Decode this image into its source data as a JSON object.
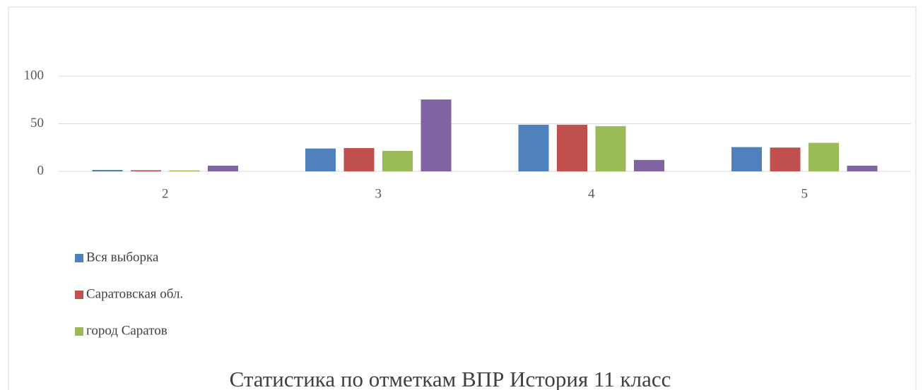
{
  "chart_data": {
    "type": "bar",
    "title": "Статистика по отметкам  ВПР  История  11 класс",
    "categories": [
      "2",
      "3",
      "4",
      "5"
    ],
    "series": [
      {
        "name": "Вся выборка",
        "color": "#4f81bd",
        "values": [
          1.5,
          24,
          49,
          25.5
        ]
      },
      {
        "name": "Саратовская обл.",
        "color": "#c0504d",
        "values": [
          1.2,
          24.5,
          49,
          25
        ]
      },
      {
        "name": "город Саратов",
        "color": "#9bbb59",
        "values": [
          1,
          21.5,
          47.5,
          30
        ]
      },
      {
        "color": "#8064a2",
        "values": [
          6,
          75.5,
          12,
          6
        ]
      }
    ],
    "ylim": [
      0,
      100
    ],
    "yticks": [
      0,
      50,
      100
    ],
    "grid": true
  }
}
